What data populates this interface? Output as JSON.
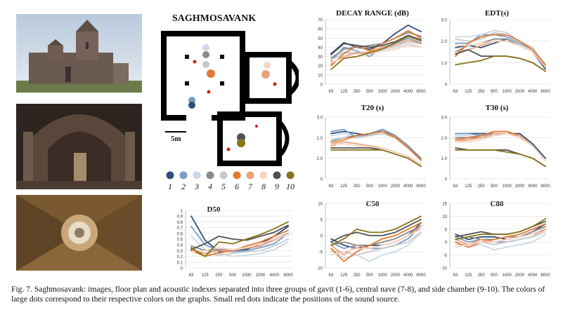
{
  "figure": {
    "caption": "Fig. 7. Saghmosavank: images, floor plan and acoustic indexes separated into three groups of gavit (1-6), central nave (7-8), and side chamber (9-10). The colors of large dots correspond to their respective colors on the graphs. Small red dots indicate the positions of the sound source."
  },
  "plan": {
    "title": "SAGHMOSAVANK",
    "scale_label": "5m",
    "legend": [
      {
        "label": "1",
        "color": "#2e4f7a"
      },
      {
        "label": "2",
        "color": "#7a9cc8"
      },
      {
        "label": "3",
        "color": "#c9d8ea"
      },
      {
        "label": "4",
        "color": "#8a8a8a"
      },
      {
        "label": "5",
        "color": "#c8c8c8"
      },
      {
        "label": "6",
        "color": "#e07a30"
      },
      {
        "label": "7",
        "color": "#eca07a"
      },
      {
        "label": "8",
        "color": "#f6d4c2"
      },
      {
        "label": "9",
        "color": "#505050"
      },
      {
        "label": "10",
        "color": "#8a7418"
      }
    ]
  },
  "chart_data": [
    {
      "type": "line",
      "title": "DECAY RANGE (dB)",
      "categories": [
        "63",
        "125",
        "250",
        "500",
        "1000",
        "2000",
        "4000",
        "8000"
      ],
      "ylim": [
        0,
        70
      ],
      "yticks": [
        0,
        10,
        20,
        30,
        40,
        50,
        60,
        70
      ],
      "yticklabels": [
        "0",
        "10",
        "20",
        "30",
        "40",
        "50",
        "60",
        "70"
      ],
      "series": [
        {
          "color": "#2e4f7a",
          "values": [
            33,
            45,
            40,
            38,
            44,
            55,
            64,
            57
          ]
        },
        {
          "color": "#7a9cc8",
          "values": [
            25,
            40,
            36,
            30,
            40,
            44,
            50,
            45
          ]
        },
        {
          "color": "#c9d8ea",
          "values": [
            30,
            35,
            34,
            33,
            38,
            40,
            44,
            40
          ]
        },
        {
          "color": "#8a8a8a",
          "values": [
            28,
            38,
            40,
            42,
            44,
            50,
            56,
            52
          ]
        },
        {
          "color": "#c8c8c8",
          "values": [
            26,
            34,
            33,
            34,
            38,
            42,
            46,
            44
          ]
        },
        {
          "color": "#e07a30",
          "values": [
            20,
            33,
            42,
            36,
            44,
            50,
            58,
            50
          ]
        },
        {
          "color": "#eca07a",
          "values": [
            22,
            30,
            34,
            35,
            40,
            42,
            48,
            44
          ]
        },
        {
          "color": "#f6d4c2",
          "values": [
            24,
            28,
            30,
            33,
            36,
            38,
            42,
            40
          ]
        },
        {
          "color": "#505050",
          "values": [
            32,
            44,
            42,
            40,
            42,
            46,
            53,
            48
          ]
        },
        {
          "color": "#8a7418",
          "values": [
            16,
            28,
            30,
            34,
            38,
            45,
            52,
            47
          ]
        }
      ]
    },
    {
      "type": "line",
      "title": "EDT(s)",
      "categories": [
        "63",
        "125",
        "250",
        "500",
        "1000",
        "2000",
        "4000",
        "8000"
      ],
      "ylim": [
        0,
        3
      ],
      "yticks": [
        0,
        1,
        2,
        3
      ],
      "yticklabels": [
        "0",
        "1.0",
        "2.0",
        "3.0"
      ],
      "series": [
        {
          "color": "#2e4f7a",
          "values": [
            1.7,
            1.8,
            1.7,
            1.9,
            2.1,
            1.8,
            1.5,
            0.7
          ]
        },
        {
          "color": "#7a9cc8",
          "values": [
            1.9,
            1.9,
            2.3,
            2.3,
            2.2,
            1.9,
            1.6,
            0.8
          ]
        },
        {
          "color": "#c9d8ea",
          "values": [
            2.2,
            2.2,
            2.3,
            2.5,
            2.4,
            2.0,
            1.7,
            0.9
          ]
        },
        {
          "color": "#8a8a8a",
          "values": [
            1.5,
            1.8,
            1.9,
            2.1,
            2.1,
            1.8,
            1.5,
            0.8
          ]
        },
        {
          "color": "#c8c8c8",
          "values": [
            2.1,
            2.0,
            2.1,
            2.4,
            2.3,
            2.0,
            1.7,
            0.8
          ]
        },
        {
          "color": "#e07a30",
          "values": [
            1.3,
            1.9,
            2.2,
            2.3,
            2.3,
            2.0,
            1.6,
            0.9
          ]
        },
        {
          "color": "#eca07a",
          "values": [
            1.5,
            1.6,
            1.8,
            2.0,
            2.0,
            1.8,
            1.5,
            0.8
          ]
        },
        {
          "color": "#f6d4c2",
          "values": [
            1.8,
            1.8,
            1.9,
            2.0,
            2.0,
            1.8,
            1.5,
            0.8
          ]
        },
        {
          "color": "#505050",
          "values": [
            1.4,
            1.6,
            1.3,
            1.3,
            1.3,
            1.2,
            1.0,
            0.6
          ]
        },
        {
          "color": "#8a7418",
          "values": [
            0.9,
            1.0,
            1.1,
            1.3,
            1.3,
            1.2,
            1.0,
            0.6
          ]
        }
      ]
    },
    {
      "type": "line",
      "title": "T20 (s)",
      "categories": [
        "63",
        "125",
        "250",
        "500",
        "1000",
        "2000",
        "4000",
        "8000"
      ],
      "ylim": [
        0,
        3
      ],
      "yticks": [
        0,
        1,
        2,
        3
      ],
      "yticklabels": [
        "0",
        "1.0",
        "2.0",
        "3.0"
      ],
      "series": [
        {
          "color": "#2e4f7a",
          "values": [
            2.2,
            2.3,
            2.2,
            2.1,
            2.4,
            2.1,
            1.6,
            0.9
          ]
        },
        {
          "color": "#7a9cc8",
          "values": [
            2.3,
            2.4,
            2.0,
            2.2,
            2.4,
            2.1,
            1.6,
            0.9
          ]
        },
        {
          "color": "#c9d8ea",
          "values": [
            2.1,
            2.2,
            2.0,
            2.1,
            2.3,
            2.0,
            1.5,
            0.9
          ]
        },
        {
          "color": "#8a8a8a",
          "values": [
            1.8,
            2.0,
            2.1,
            2.2,
            2.3,
            2.1,
            1.6,
            1.0
          ]
        },
        {
          "color": "#c8c8c8",
          "values": [
            1.9,
            2.0,
            2.0,
            2.1,
            2.2,
            2.0,
            1.5,
            0.9
          ]
        },
        {
          "color": "#e07a30",
          "values": [
            1.7,
            1.9,
            2.1,
            2.2,
            2.3,
            2.0,
            1.5,
            0.9
          ]
        },
        {
          "color": "#eca07a",
          "values": [
            1.6,
            1.8,
            1.7,
            1.6,
            1.5,
            1.3,
            1.1,
            0.7
          ]
        },
        {
          "color": "#f6d4c2",
          "values": [
            1.7,
            1.7,
            1.6,
            1.5,
            1.5,
            1.3,
            1.1,
            0.7
          ]
        },
        {
          "color": "#505050",
          "values": [
            1.5,
            1.5,
            1.5,
            1.5,
            1.4,
            1.2,
            1.0,
            0.6
          ]
        },
        {
          "color": "#8a7418",
          "values": [
            1.4,
            1.4,
            1.4,
            1.4,
            1.4,
            1.2,
            1.0,
            0.6
          ]
        }
      ]
    },
    {
      "type": "line",
      "title": "T30 (s)",
      "categories": [
        "63",
        "125",
        "250",
        "500",
        "1000",
        "2000",
        "4000",
        "8000"
      ],
      "ylim": [
        0,
        3
      ],
      "yticks": [
        0,
        1,
        2,
        3
      ],
      "yticklabels": [
        "0",
        "1.0",
        "2.0",
        "3.0"
      ],
      "series": [
        {
          "color": "#2e4f7a",
          "values": [
            2.2,
            2.2,
            2.2,
            2.2,
            2.2,
            2.2,
            1.7,
            1.0
          ]
        },
        {
          "color": "#7a9cc8",
          "values": [
            2.2,
            2.2,
            2.1,
            2.2,
            2.2,
            2.1,
            1.6,
            0.9
          ]
        },
        {
          "color": "#c9d8ea",
          "values": [
            2.1,
            2.1,
            2.0,
            2.1,
            2.2,
            2.0,
            1.6,
            0.9
          ]
        },
        {
          "color": "#8a8a8a",
          "values": [
            2.0,
            2.0,
            2.0,
            2.1,
            2.2,
            2.1,
            1.6,
            0.9
          ]
        },
        {
          "color": "#c8c8c8",
          "values": [
            1.9,
            1.9,
            2.0,
            2.1,
            2.2,
            2.0,
            1.6,
            0.9
          ]
        },
        {
          "color": "#e07a30",
          "values": [
            1.9,
            2.0,
            2.1,
            2.3,
            2.3,
            2.1,
            1.6,
            0.9
          ]
        },
        {
          "color": "#eca07a",
          "values": [
            1.8,
            1.9,
            2.0,
            2.2,
            2.2,
            2.1,
            1.6,
            0.9
          ]
        },
        {
          "color": "#f6d4c2",
          "values": [
            1.8,
            1.8,
            1.9,
            2.1,
            2.2,
            2.0,
            1.6,
            0.9
          ]
        },
        {
          "color": "#505050",
          "values": [
            1.5,
            1.4,
            1.4,
            1.4,
            1.4,
            1.2,
            1.0,
            0.6
          ]
        },
        {
          "color": "#8a7418",
          "values": [
            1.4,
            1.4,
            1.4,
            1.4,
            1.3,
            1.2,
            1.0,
            0.6
          ]
        }
      ]
    },
    {
      "type": "line",
      "title": "D50",
      "categories": [
        "63",
        "125",
        "250",
        "500",
        "1000",
        "2000",
        "4000",
        "8000"
      ],
      "ylim": [
        0,
        1
      ],
      "yticks": [
        0,
        0.1,
        0.2,
        0.3,
        0.4,
        0.5,
        0.6,
        0.7,
        0.8,
        0.9,
        1.0
      ],
      "yticklabels": [
        "0",
        "0.1",
        "0.2",
        "0.3",
        "0.4",
        "0.5",
        "0.6",
        "0.7",
        "0.8",
        "0.9",
        "1"
      ],
      "series": [
        {
          "color": "#2e4f7a",
          "values": [
            0.9,
            0.48,
            0.28,
            0.3,
            0.32,
            0.42,
            0.55,
            0.72
          ]
        },
        {
          "color": "#7a9cc8",
          "values": [
            0.72,
            0.4,
            0.3,
            0.28,
            0.3,
            0.35,
            0.42,
            0.6
          ]
        },
        {
          "color": "#c9d8ea",
          "values": [
            0.55,
            0.32,
            0.25,
            0.2,
            0.22,
            0.25,
            0.32,
            0.45
          ]
        },
        {
          "color": "#8a8a8a",
          "values": [
            0.38,
            0.3,
            0.32,
            0.3,
            0.34,
            0.38,
            0.5,
            0.6
          ]
        },
        {
          "color": "#c8c8c8",
          "values": [
            0.3,
            0.25,
            0.22,
            0.25,
            0.28,
            0.3,
            0.38,
            0.5
          ]
        },
        {
          "color": "#e07a30",
          "values": [
            0.3,
            0.2,
            0.26,
            0.3,
            0.38,
            0.45,
            0.55,
            0.65
          ]
        },
        {
          "color": "#eca07a",
          "values": [
            0.32,
            0.25,
            0.3,
            0.3,
            0.35,
            0.38,
            0.48,
            0.6
          ]
        },
        {
          "color": "#f6d4c2",
          "values": [
            0.28,
            0.3,
            0.35,
            0.32,
            0.35,
            0.42,
            0.5,
            0.58
          ]
        },
        {
          "color": "#505050",
          "values": [
            0.32,
            0.42,
            0.55,
            0.5,
            0.48,
            0.55,
            0.62,
            0.74
          ]
        },
        {
          "color": "#8a7418",
          "values": [
            0.35,
            0.2,
            0.45,
            0.42,
            0.5,
            0.58,
            0.68,
            0.8
          ]
        }
      ]
    },
    {
      "type": "line",
      "title": "C50",
      "categories": [
        "63",
        "125",
        "250",
        "500",
        "1000",
        "2000",
        "4000",
        "8000"
      ],
      "ylim": [
        -10,
        10
      ],
      "yticks": [
        -10,
        -5,
        0,
        5,
        10
      ],
      "yticklabels": [
        "-10",
        "-5",
        "0",
        "5",
        "10"
      ],
      "series": [
        {
          "color": "#2e4f7a",
          "values": [
            -1,
            -3,
            -4,
            -3,
            -3,
            -2,
            0,
            4
          ]
        },
        {
          "color": "#7a9cc8",
          "values": [
            -2,
            -4,
            -3,
            -4,
            -4,
            -3,
            -1,
            3
          ]
        },
        {
          "color": "#c9d8ea",
          "values": [
            -4,
            -7,
            -6,
            -8,
            -6,
            -5,
            -3,
            1
          ]
        },
        {
          "color": "#8a8a8a",
          "values": [
            -3,
            -2,
            -3,
            -3,
            -2,
            -1,
            1,
            3
          ]
        },
        {
          "color": "#c8c8c8",
          "values": [
            -5,
            -5,
            -6,
            -5,
            -4,
            -3,
            -2,
            1
          ]
        },
        {
          "color": "#e07a30",
          "values": [
            -4,
            -8,
            -5,
            -3,
            -1,
            0,
            2,
            4
          ]
        },
        {
          "color": "#eca07a",
          "values": [
            -3,
            -6,
            -3,
            -4,
            -3,
            -2,
            0,
            3
          ]
        },
        {
          "color": "#f6d4c2",
          "values": [
            -6,
            -5,
            -4,
            -4,
            -3,
            -2,
            0,
            2
          ]
        },
        {
          "color": "#505050",
          "values": [
            -2,
            0,
            1,
            0,
            0,
            1,
            3,
            5
          ]
        },
        {
          "color": "#8a7418",
          "values": [
            -3,
            -1,
            2,
            1,
            1,
            2,
            4,
            6
          ]
        }
      ]
    },
    {
      "type": "line",
      "title": "C80",
      "categories": [
        "63",
        "125",
        "250",
        "500",
        "1000",
        "2000",
        "4000",
        "8000"
      ],
      "ylim": [
        -10,
        15
      ],
      "yticks": [
        -10,
        -5,
        0,
        5,
        10,
        15
      ],
      "yticklabels": [
        "-10",
        "-5",
        "0",
        "5",
        "10",
        "15"
      ],
      "series": [
        {
          "color": "#2e4f7a",
          "values": [
            3,
            1,
            2,
            2,
            1,
            2,
            4,
            7
          ]
        },
        {
          "color": "#7a9cc8",
          "values": [
            2,
            0,
            1,
            0,
            0,
            1,
            2,
            5
          ]
        },
        {
          "color": "#c9d8ea",
          "values": [
            0,
            -2,
            -1,
            -3,
            -2,
            -1,
            0,
            3
          ]
        },
        {
          "color": "#8a8a8a",
          "values": [
            1,
            2,
            1,
            1,
            2,
            2,
            4,
            6
          ]
        },
        {
          "color": "#c8c8c8",
          "values": [
            -1,
            -1,
            0,
            -1,
            0,
            1,
            2,
            4
          ]
        },
        {
          "color": "#e07a30",
          "values": [
            0,
            -2,
            0,
            1,
            2,
            3,
            5,
            7
          ]
        },
        {
          "color": "#eca07a",
          "values": [
            1,
            -1,
            1,
            0,
            1,
            2,
            3,
            5
          ]
        },
        {
          "color": "#f6d4c2",
          "values": [
            -2,
            -1,
            0,
            0,
            1,
            2,
            3,
            4
          ]
        },
        {
          "color": "#505050",
          "values": [
            2,
            3,
            4,
            3,
            3,
            4,
            6,
            8
          ]
        },
        {
          "color": "#8a7418",
          "values": [
            1,
            2,
            3,
            3,
            3,
            4,
            6,
            9
          ]
        }
      ]
    }
  ]
}
